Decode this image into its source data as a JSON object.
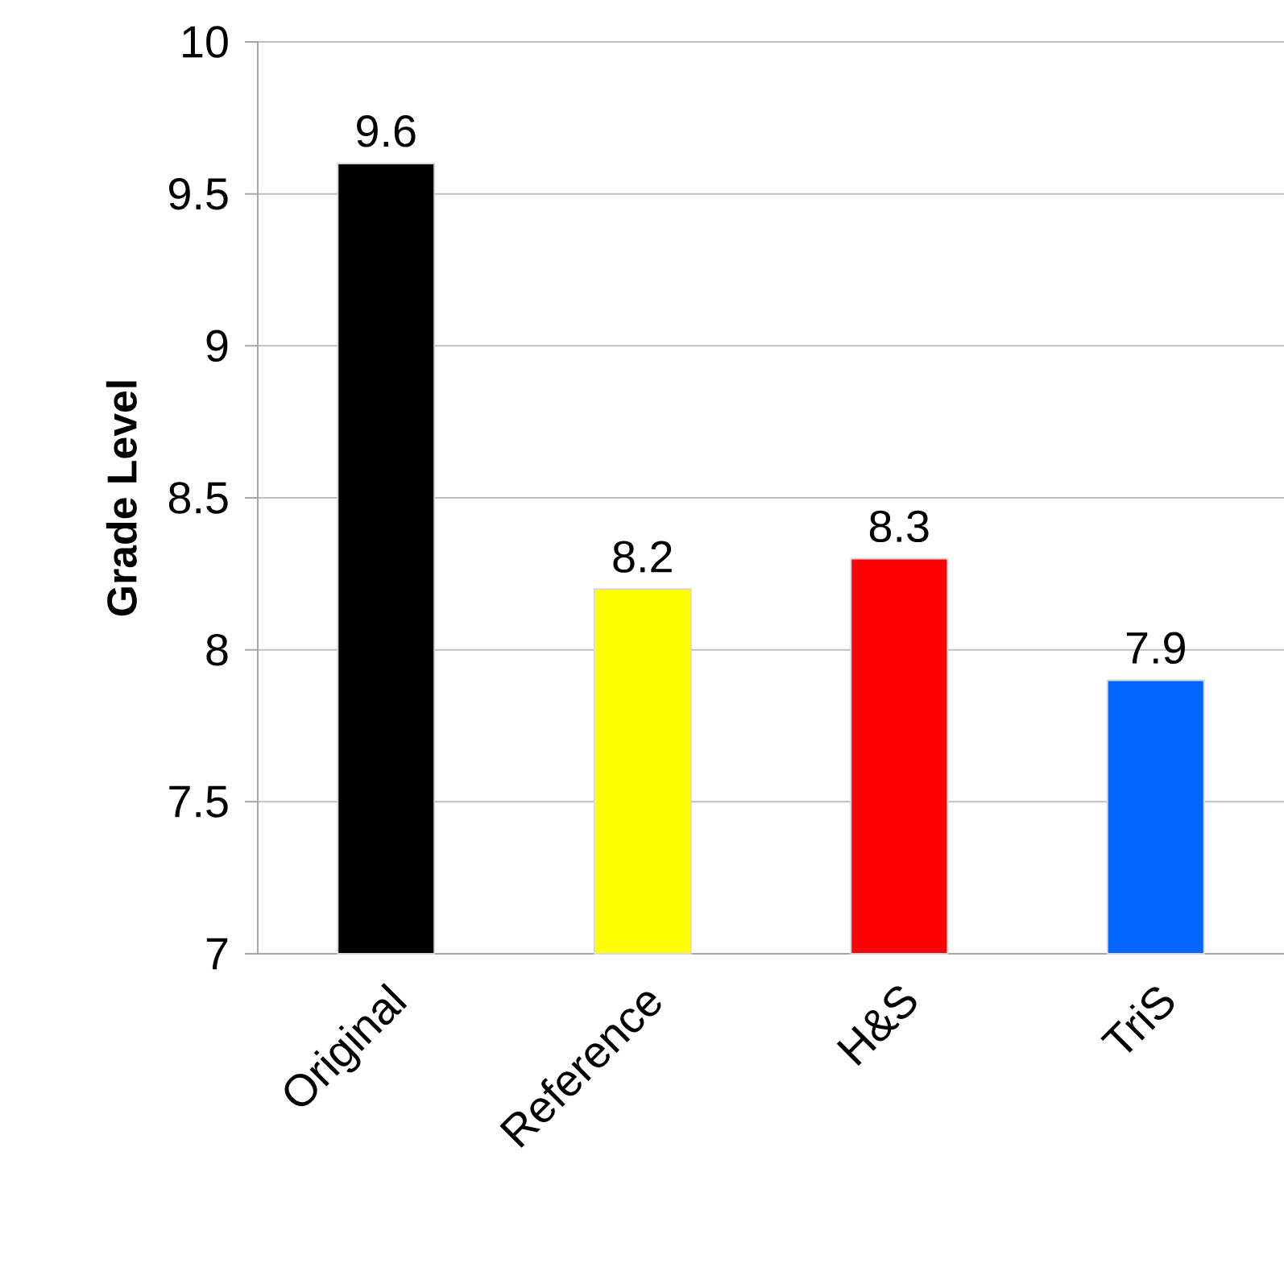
{
  "chart_data": {
    "type": "bar",
    "ylabel": "Grade Level",
    "categories": [
      "Original",
      "Reference",
      "H&S",
      "TriS"
    ],
    "values": [
      9.6,
      8.2,
      8.3,
      7.9
    ],
    "colors": [
      "#000000",
      "#ffff00",
      "#ff0000",
      "#0066ff"
    ],
    "ylim": [
      7,
      10
    ],
    "yticks": [
      7,
      7.5,
      8,
      8.5,
      9,
      9.5,
      10
    ],
    "grid": "y",
    "data_labels": true
  }
}
